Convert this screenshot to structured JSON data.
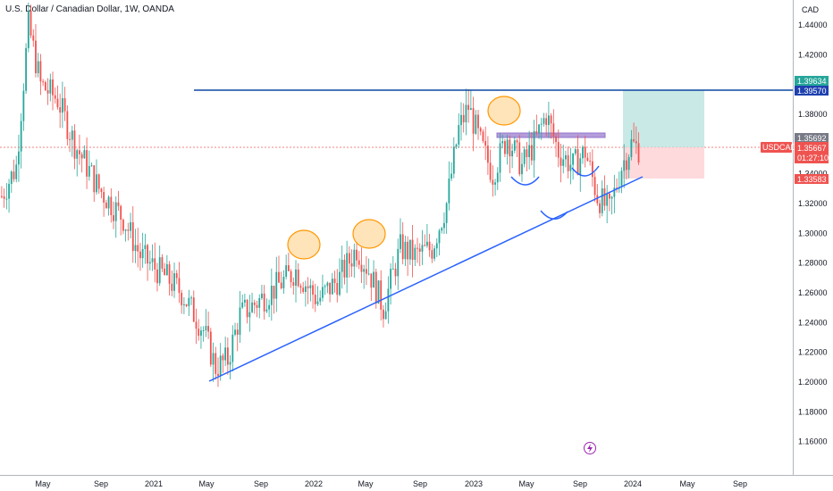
{
  "header": {
    "title": "U.S. Dollar / Canadian Dollar, 1W, OANDA"
  },
  "price_axis": {
    "currency": "CAD",
    "ticks": [
      "1.44000",
      "1.42000",
      "1.40000",
      "1.38000",
      "1.36000",
      "1.34000",
      "1.32000",
      "1.30000",
      "1.28000",
      "1.26000",
      "1.24000",
      "1.22000",
      "1.20000",
      "1.18000",
      "1.16000"
    ]
  },
  "time_axis": {
    "ticks": [
      "May",
      "Sep",
      "2021",
      "May",
      "Sep",
      "2022",
      "May",
      "Sep",
      "2023",
      "May",
      "Sep",
      "2024",
      "May",
      "Sep"
    ]
  },
  "badges": {
    "target": "1.39634",
    "resistance": "1.39570",
    "box_level": "1.35692",
    "symbol": "USDCAD",
    "current": "1.35667",
    "countdown": "01:27:10",
    "stop": "1.33583"
  },
  "colors": {
    "up": "#26a69a",
    "down": "#ef5350",
    "trendline": "#2962ff",
    "resistance": "#0d47a1",
    "circle_fill": "#ffcc80",
    "circle_stroke": "#ff9800",
    "profit_zone": "#b2dfdb",
    "loss_zone": "#ffcdd2",
    "purple_box": "#b39ddb"
  },
  "chart_data": {
    "type": "candlestick",
    "title": "U.S. Dollar / Canadian Dollar, 1W, OANDA",
    "y_range": [
      1.14,
      1.455
    ],
    "keypoints": [
      {
        "t": 0,
        "p": 1.325
      },
      {
        "t": 6,
        "p": 1.345
      },
      {
        "t": 11,
        "p": 1.44
      },
      {
        "t": 16,
        "p": 1.4
      },
      {
        "t": 23,
        "p": 1.39
      },
      {
        "t": 30,
        "p": 1.36
      },
      {
        "t": 40,
        "p": 1.33
      },
      {
        "t": 50,
        "p": 1.31
      },
      {
        "t": 57,
        "p": 1.285
      },
      {
        "t": 68,
        "p": 1.27
      },
      {
        "t": 74,
        "p": 1.26
      },
      {
        "t": 83,
        "p": 1.235
      },
      {
        "t": 88,
        "p": 1.21
      },
      {
        "t": 93,
        "p": 1.215
      },
      {
        "t": 98,
        "p": 1.245
      },
      {
        "t": 110,
        "p": 1.26
      },
      {
        "t": 121,
        "p": 1.275
      },
      {
        "t": 130,
        "p": 1.255
      },
      {
        "t": 139,
        "p": 1.27
      },
      {
        "t": 146,
        "p": 1.29
      },
      {
        "t": 151,
        "p": 1.275
      },
      {
        "t": 157,
        "p": 1.25
      },
      {
        "t": 164,
        "p": 1.29
      },
      {
        "t": 170,
        "p": 1.285
      },
      {
        "t": 177,
        "p": 1.29
      },
      {
        "t": 183,
        "p": 1.32
      },
      {
        "t": 188,
        "p": 1.37
      },
      {
        "t": 192,
        "p": 1.385
      },
      {
        "t": 197,
        "p": 1.36
      },
      {
        "t": 202,
        "p": 1.34
      },
      {
        "t": 208,
        "p": 1.365
      },
      {
        "t": 214,
        "p": 1.345
      },
      {
        "t": 219,
        "p": 1.36
      },
      {
        "t": 224,
        "p": 1.38
      },
      {
        "t": 229,
        "p": 1.355
      },
      {
        "t": 235,
        "p": 1.345
      },
      {
        "t": 240,
        "p": 1.355
      },
      {
        "t": 245,
        "p": 1.325
      },
      {
        "t": 250,
        "p": 1.315
      },
      {
        "t": 255,
        "p": 1.345
      },
      {
        "t": 259,
        "p": 1.36
      },
      {
        "t": 262,
        "p": 1.357
      }
    ]
  }
}
